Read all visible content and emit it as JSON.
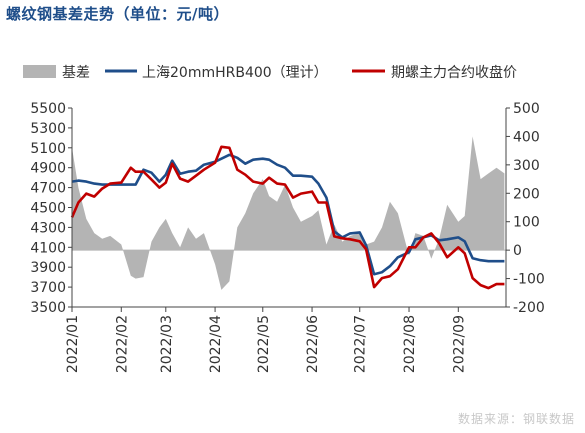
{
  "title": "螺纹钢基差走势（单位：元/吨）",
  "source": "数据来源：钢联数据",
  "colors": {
    "basis_fill": "#b4b4b4",
    "spot_line": "#1f4e8a",
    "futures_line": "#c00000",
    "axis": "#444444",
    "text": "#333333",
    "title": "#1f4e8a"
  },
  "chart_data": {
    "type": "line",
    "x_type": "date",
    "x_ticks": [
      "2022/01",
      "2022/02",
      "2022/03",
      "2022/04",
      "2022/05",
      "2022/06",
      "2022/07",
      "2022/08",
      "2022/09"
    ],
    "y_left": {
      "ylim": [
        3500,
        5500
      ],
      "ticks": [
        3500,
        3700,
        3900,
        4100,
        4300,
        4500,
        4700,
        4900,
        5100,
        5300,
        5500
      ]
    },
    "y_right": {
      "ylim": [
        -200,
        500
      ],
      "ticks": [
        -200,
        -100,
        0,
        100,
        200,
        300,
        400,
        500
      ]
    },
    "legend": {
      "placement": "top",
      "entries": [
        "基差",
        "上海20mmHRB400（理计）",
        "期螺主力合约收盘价"
      ]
    },
    "grid": false,
    "series": [
      {
        "name": "基差",
        "type": "area",
        "axis": "right",
        "x": [
          "2022-01-01",
          "2022-01-05",
          "2022-01-10",
          "2022-01-15",
          "2022-01-20",
          "2022-01-25",
          "2022-02-01",
          "2022-02-07",
          "2022-02-10",
          "2022-02-15",
          "2022-02-20",
          "2022-02-25",
          "2022-03-01",
          "2022-03-05",
          "2022-03-10",
          "2022-03-15",
          "2022-03-20",
          "2022-03-25",
          "2022-04-01",
          "2022-04-05",
          "2022-04-10",
          "2022-04-15",
          "2022-04-20",
          "2022-04-25",
          "2022-05-01",
          "2022-05-05",
          "2022-05-10",
          "2022-05-15",
          "2022-05-20",
          "2022-05-25",
          "2022-06-01",
          "2022-06-05",
          "2022-06-10",
          "2022-06-15",
          "2022-06-20",
          "2022-06-25",
          "2022-07-01",
          "2022-07-05",
          "2022-07-10",
          "2022-07-15",
          "2022-07-20",
          "2022-07-25",
          "2022-08-01",
          "2022-08-05",
          "2022-08-10",
          "2022-08-15",
          "2022-08-20",
          "2022-08-25",
          "2022-09-01",
          "2022-09-05",
          "2022-09-10",
          "2022-09-15",
          "2022-09-20",
          "2022-09-25",
          "2022-09-30"
        ],
        "values": [
          360,
          220,
          110,
          60,
          40,
          50,
          20,
          -90,
          -100,
          -95,
          30,
          80,
          110,
          60,
          10,
          80,
          40,
          60,
          -50,
          -140,
          -110,
          80,
          130,
          200,
          250,
          190,
          170,
          230,
          150,
          100,
          120,
          140,
          20,
          90,
          30,
          50,
          60,
          20,
          30,
          80,
          170,
          130,
          -20,
          60,
          50,
          -30,
          40,
          160,
          100,
          120,
          400,
          250,
          270,
          290,
          270
        ]
      },
      {
        "name": "上海20mmHRB400（理计）",
        "type": "line",
        "axis": "left",
        "x": [
          "2022-01-01",
          "2022-01-05",
          "2022-01-10",
          "2022-01-15",
          "2022-01-20",
          "2022-01-25",
          "2022-02-01",
          "2022-02-07",
          "2022-02-10",
          "2022-02-15",
          "2022-02-20",
          "2022-02-25",
          "2022-03-01",
          "2022-03-05",
          "2022-03-10",
          "2022-03-15",
          "2022-03-20",
          "2022-03-25",
          "2022-04-01",
          "2022-04-05",
          "2022-04-10",
          "2022-04-15",
          "2022-04-20",
          "2022-04-25",
          "2022-05-01",
          "2022-05-05",
          "2022-05-10",
          "2022-05-15",
          "2022-05-20",
          "2022-05-25",
          "2022-06-01",
          "2022-06-05",
          "2022-06-10",
          "2022-06-15",
          "2022-06-20",
          "2022-06-25",
          "2022-07-01",
          "2022-07-05",
          "2022-07-10",
          "2022-07-15",
          "2022-07-20",
          "2022-07-25",
          "2022-08-01",
          "2022-08-05",
          "2022-08-10",
          "2022-08-15",
          "2022-08-20",
          "2022-08-25",
          "2022-09-01",
          "2022-09-05",
          "2022-09-10",
          "2022-09-15",
          "2022-09-20",
          "2022-09-25",
          "2022-09-30"
        ],
        "values": [
          4760,
          4770,
          4760,
          4740,
          4730,
          4730,
          4730,
          4730,
          4730,
          4880,
          4850,
          4760,
          4830,
          4970,
          4840,
          4860,
          4870,
          4930,
          4960,
          4990,
          5030,
          5000,
          4940,
          4980,
          4990,
          4980,
          4930,
          4900,
          4820,
          4820,
          4810,
          4740,
          4600,
          4260,
          4200,
          4240,
          4250,
          4120,
          3830,
          3850,
          3910,
          4000,
          4050,
          4180,
          4200,
          4220,
          4170,
          4180,
          4200,
          4160,
          3990,
          3970,
          3960,
          3960,
          3960
        ]
      },
      {
        "name": "期螺主力合约收盘价",
        "type": "line",
        "axis": "left",
        "x": [
          "2022-01-01",
          "2022-01-05",
          "2022-01-10",
          "2022-01-15",
          "2022-01-20",
          "2022-01-25",
          "2022-02-01",
          "2022-02-07",
          "2022-02-10",
          "2022-02-15",
          "2022-02-20",
          "2022-02-25",
          "2022-03-01",
          "2022-03-05",
          "2022-03-10",
          "2022-03-15",
          "2022-03-20",
          "2022-03-25",
          "2022-04-01",
          "2022-04-05",
          "2022-04-10",
          "2022-04-15",
          "2022-04-20",
          "2022-04-25",
          "2022-05-01",
          "2022-05-05",
          "2022-05-10",
          "2022-05-15",
          "2022-05-20",
          "2022-05-25",
          "2022-06-01",
          "2022-06-05",
          "2022-06-10",
          "2022-06-15",
          "2022-06-20",
          "2022-06-25",
          "2022-07-01",
          "2022-07-05",
          "2022-07-10",
          "2022-07-15",
          "2022-07-20",
          "2022-07-25",
          "2022-08-01",
          "2022-08-05",
          "2022-08-10",
          "2022-08-15",
          "2022-08-20",
          "2022-08-25",
          "2022-09-01",
          "2022-09-05",
          "2022-09-10",
          "2022-09-15",
          "2022-09-20",
          "2022-09-25",
          "2022-09-30"
        ],
        "values": [
          4400,
          4550,
          4640,
          4610,
          4690,
          4740,
          4750,
          4900,
          4860,
          4860,
          4780,
          4700,
          4750,
          4940,
          4790,
          4760,
          4820,
          4880,
          4950,
          5110,
          5100,
          4880,
          4830,
          4760,
          4740,
          4800,
          4740,
          4730,
          4600,
          4640,
          4660,
          4550,
          4550,
          4210,
          4190,
          4180,
          4160,
          4080,
          3700,
          3790,
          3810,
          3880,
          4100,
          4100,
          4200,
          4240,
          4140,
          4000,
          4100,
          4040,
          3790,
          3720,
          3690,
          3730,
          3730
        ]
      }
    ]
  }
}
